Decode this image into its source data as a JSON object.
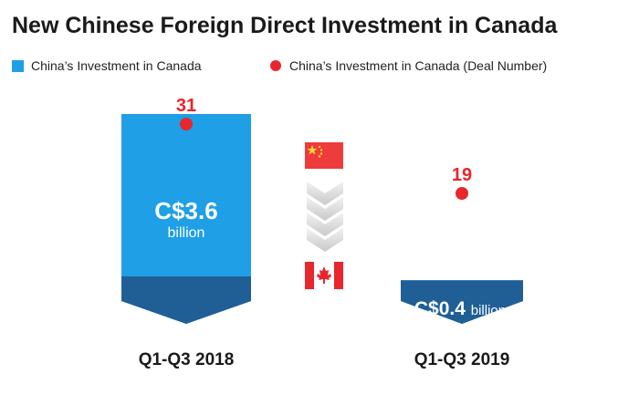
{
  "chart_data": {
    "type": "bar",
    "title": "New Chinese Foreign Direct Investment in Canada",
    "categories": [
      "Q1-Q3 2018",
      "Q1-Q3 2019"
    ],
    "series": [
      {
        "name": "China’s Investment in Canada",
        "values": [
          3.6,
          0.4
        ],
        "labels": [
          {
            "value": "C$3.6",
            "unit": "billion"
          },
          {
            "value": "C$0.4",
            "unit": "billion"
          }
        ]
      },
      {
        "name": "China’s Investment in Canada (Deal Number)",
        "values": [
          31,
          19
        ]
      }
    ],
    "legend_position": "top-left",
    "colors": {
      "bar": "#1f9fe5",
      "bar_dark": "#1f5f96",
      "deal_dot": "#e8262d",
      "china_flag": "#ee3b3b",
      "canada_flag": "#e8262d"
    }
  }
}
